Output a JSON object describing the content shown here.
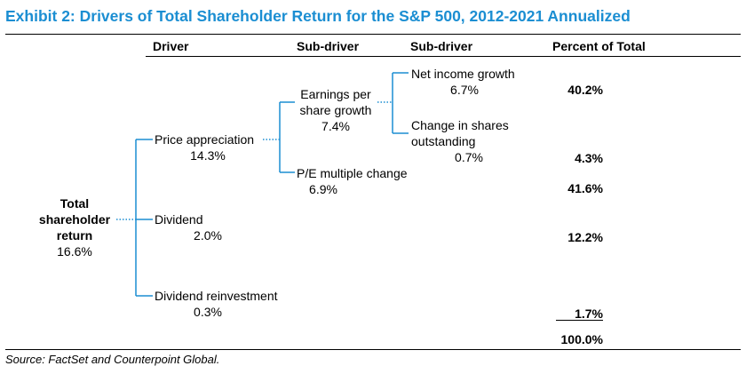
{
  "title": "Exhibit 2: Drivers of Total Shareholder Return for the S&P 500, 2012-2021 Annualized",
  "headers": {
    "driver": "Driver",
    "sub_driver_1": "Sub-driver",
    "sub_driver_2": "Sub-driver",
    "percent": "Percent of Total"
  },
  "root": {
    "label_line1": "Total",
    "label_line2": "shareholder",
    "label_line3": "return",
    "value": "16.6%"
  },
  "drivers": {
    "price": {
      "label": "Price appreciation",
      "value": "14.3%"
    },
    "dividend": {
      "label": "Dividend",
      "value": "2.0%"
    },
    "reinvest": {
      "label": "Dividend reinvestment",
      "value": "0.3%"
    }
  },
  "sub1": {
    "eps": {
      "line1": "Earnings per",
      "line2": "share growth",
      "value": "7.4%"
    },
    "pe": {
      "label": "P/E multiple change",
      "value": "6.9%"
    }
  },
  "sub2": {
    "net_income": {
      "label": "Net income growth",
      "value": "6.7%"
    },
    "shares": {
      "line1": "Change in shares",
      "line2": "outstanding",
      "value": "0.7%"
    }
  },
  "percents": {
    "net_income": "40.2%",
    "shares": "4.3%",
    "pe": "41.6%",
    "dividend": "12.2%",
    "reinvest": "1.7%",
    "total": "100.0%"
  },
  "source": "Source: FactSet and Counterpoint Global.",
  "colors": {
    "title": "#1b8ed2",
    "connector": "#1b8ed2"
  }
}
